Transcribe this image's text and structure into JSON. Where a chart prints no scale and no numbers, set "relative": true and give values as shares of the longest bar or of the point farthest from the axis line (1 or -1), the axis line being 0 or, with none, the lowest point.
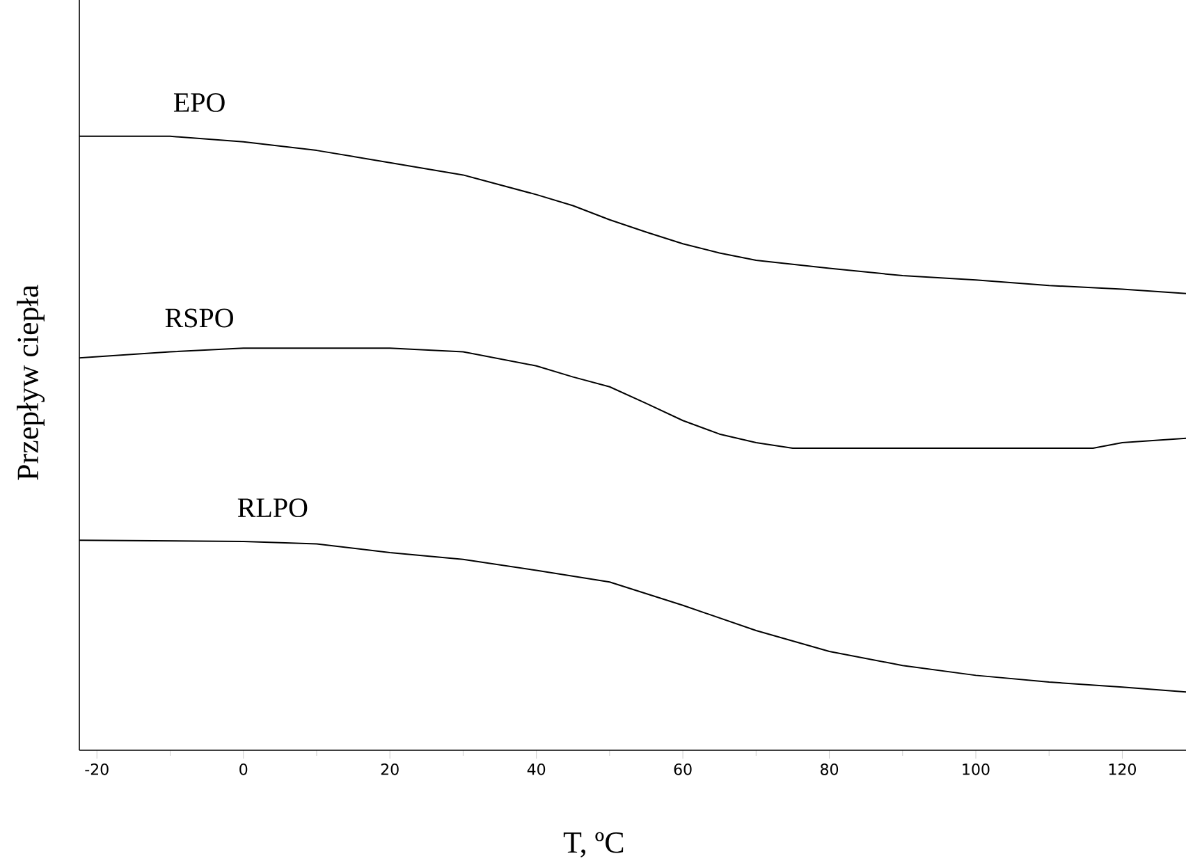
{
  "chart_data": {
    "type": "line",
    "xlabel": "T, ºC",
    "ylabel": "Przepływ ciepła",
    "relative": true,
    "xlim": [
      -22.4,
      128.7
    ],
    "xticks": [
      -20,
      {
        "value": -10,
        "label": null
      },
      0,
      {
        "value": 10,
        "label": null
      },
      20,
      {
        "value": 30,
        "label": null
      },
      40,
      {
        "value": 50,
        "label": null
      },
      60,
      {
        "value": 70,
        "label": null
      },
      80,
      {
        "value": 90,
        "label": null
      },
      100,
      {
        "value": 110,
        "label": null
      },
      120
    ],
    "series": [
      {
        "name": "EPO",
        "color": "#000000",
        "x": [
          -22.4,
          -10,
          0,
          10,
          20,
          30,
          40,
          45,
          50,
          55,
          60,
          65,
          70,
          80,
          90,
          100,
          110,
          120,
          128.7
        ],
        "values": [
          1.0,
          1.0,
          0.991,
          0.977,
          0.957,
          0.937,
          0.905,
          0.887,
          0.864,
          0.844,
          0.825,
          0.81,
          0.798,
          0.785,
          0.773,
          0.766,
          0.757,
          0.751,
          0.744
        ]
      },
      {
        "name": "RSPO",
        "color": "#000000",
        "x": [
          -22.4,
          -10,
          0,
          10,
          20,
          30,
          40,
          45,
          50,
          55,
          60,
          65,
          70,
          75,
          90,
          100,
          116,
          120,
          128.7
        ],
        "values": [
          0.639,
          0.649,
          0.655,
          0.655,
          0.655,
          0.649,
          0.626,
          0.608,
          0.592,
          0.565,
          0.537,
          0.515,
          0.501,
          0.492,
          0.492,
          0.492,
          0.492,
          0.501,
          0.508
        ]
      },
      {
        "name": "RLPO",
        "color": "#000000",
        "x": [
          -22.4,
          0,
          10,
          20,
          30,
          40,
          50,
          60,
          70,
          80,
          90,
          100,
          110,
          120,
          128.7
        ],
        "values": [
          0.342,
          0.34,
          0.336,
          0.322,
          0.311,
          0.293,
          0.274,
          0.236,
          0.195,
          0.161,
          0.138,
          0.122,
          0.111,
          0.103,
          0.095
        ]
      }
    ]
  }
}
